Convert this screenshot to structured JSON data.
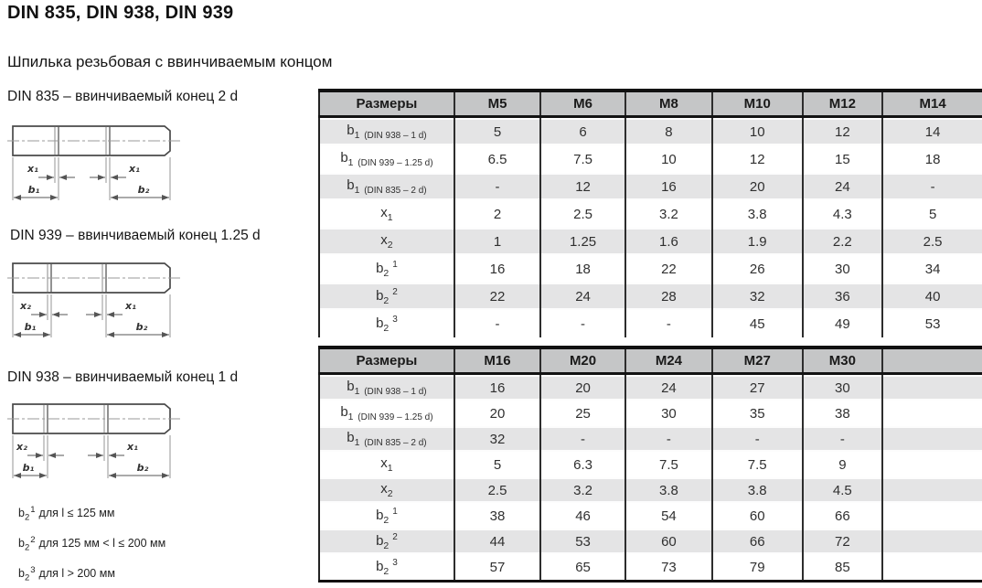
{
  "page": {
    "title": "DIN 835, DIN 938, DIN 939",
    "subtitle": "Шпилька резьбовая с ввинчиваемым концом"
  },
  "colors": {
    "table_header_bg": "#c5c6c7",
    "table_stripe_bg": "#e4e4e5",
    "table_border": "#111111",
    "drawing_line": "#4a4a4a",
    "text": "#1d1d1d"
  },
  "drawings": [
    {
      "caption": "DIN 835 – ввинчиваемый конец 2 d",
      "dims": {
        "x_left": "x₁",
        "b_left": "b₁",
        "x_right": "x₁",
        "b_right": "b₂"
      }
    },
    {
      "caption": "DIN 939 – ввинчиваемый конец 1.25 d",
      "dims": {
        "x_left": "x₂",
        "b_left": "b₁",
        "x_right": "x₁",
        "b_right": "b₂"
      }
    },
    {
      "caption": "DIN 938 – ввинчиваемый конец 1 d",
      "dims": {
        "x_left": "x₂",
        "b_left": "b₁",
        "x_right": "x₁",
        "b_right": "b₂"
      }
    }
  ],
  "tables": [
    {
      "header_label": "Размеры",
      "columns": [
        "M5",
        "M6",
        "M8",
        "M10",
        "M12",
        "M14"
      ],
      "rows": [
        {
          "base": "b",
          "sub": "1",
          "note": "(DIN 938 – 1 d)",
          "sup": "",
          "values": [
            "5",
            "6",
            "8",
            "10",
            "12",
            "14"
          ]
        },
        {
          "base": "b",
          "sub": "1",
          "note": "(DIN 939 – 1.25 d)",
          "sup": "",
          "values": [
            "6.5",
            "7.5",
            "10",
            "12",
            "15",
            "18"
          ]
        },
        {
          "base": "b",
          "sub": "1",
          "note": "(DIN 835 – 2 d)",
          "sup": "",
          "values": [
            "-",
            "12",
            "16",
            "20",
            "24",
            "-"
          ]
        },
        {
          "base": "x",
          "sub": "1",
          "note": "",
          "sup": "",
          "values": [
            "2",
            "2.5",
            "3.2",
            "3.8",
            "4.3",
            "5"
          ]
        },
        {
          "base": "x",
          "sub": "2",
          "note": "",
          "sup": "",
          "values": [
            "1",
            "1.25",
            "1.6",
            "1.9",
            "2.2",
            "2.5"
          ]
        },
        {
          "base": "b",
          "sub": "2",
          "note": "",
          "sup": "1",
          "values": [
            "16",
            "18",
            "22",
            "26",
            "30",
            "34"
          ]
        },
        {
          "base": "b",
          "sub": "2",
          "note": "",
          "sup": "2",
          "values": [
            "22",
            "24",
            "28",
            "32",
            "36",
            "40"
          ]
        },
        {
          "base": "b",
          "sub": "2",
          "note": "",
          "sup": "3",
          "values": [
            "-",
            "-",
            "-",
            "45",
            "49",
            "53"
          ]
        }
      ]
    },
    {
      "header_label": "Размеры",
      "columns": [
        "M16",
        "M20",
        "M24",
        "M27",
        "M30",
        ""
      ],
      "rows": [
        {
          "base": "b",
          "sub": "1",
          "note": "(DIN 938 – 1 d)",
          "sup": "",
          "values": [
            "16",
            "20",
            "24",
            "27",
            "30",
            ""
          ]
        },
        {
          "base": "b",
          "sub": "1",
          "note": "(DIN 939 – 1.25 d)",
          "sup": "",
          "values": [
            "20",
            "25",
            "30",
            "35",
            "38",
            ""
          ]
        },
        {
          "base": "b",
          "sub": "1",
          "note": "(DIN 835 – 2 d)",
          "sup": "",
          "values": [
            "32",
            "-",
            "-",
            "-",
            "-",
            ""
          ]
        },
        {
          "base": "x",
          "sub": "1",
          "note": "",
          "sup": "",
          "values": [
            "5",
            "6.3",
            "7.5",
            "7.5",
            "9",
            ""
          ]
        },
        {
          "base": "x",
          "sub": "2",
          "note": "",
          "sup": "",
          "values": [
            "2.5",
            "3.2",
            "3.8",
            "3.8",
            "4.5",
            ""
          ]
        },
        {
          "base": "b",
          "sub": "2",
          "note": "",
          "sup": "1",
          "values": [
            "38",
            "46",
            "54",
            "60",
            "66",
            ""
          ]
        },
        {
          "base": "b",
          "sub": "2",
          "note": "",
          "sup": "2",
          "values": [
            "44",
            "53",
            "60",
            "66",
            "72",
            ""
          ]
        },
        {
          "base": "b",
          "sub": "2",
          "note": "",
          "sup": "3",
          "values": [
            "57",
            "65",
            "73",
            "79",
            "85",
            ""
          ]
        }
      ]
    }
  ],
  "footnotes": [
    {
      "base": "b",
      "sub": "2",
      "sup": "1",
      "text": "для l ≤ 125 мм"
    },
    {
      "base": "b",
      "sub": "2",
      "sup": "2",
      "text": "для 125 мм < l ≤ 200 мм"
    },
    {
      "base": "b",
      "sub": "2",
      "sup": "3",
      "text": "для l > 200 мм"
    }
  ]
}
